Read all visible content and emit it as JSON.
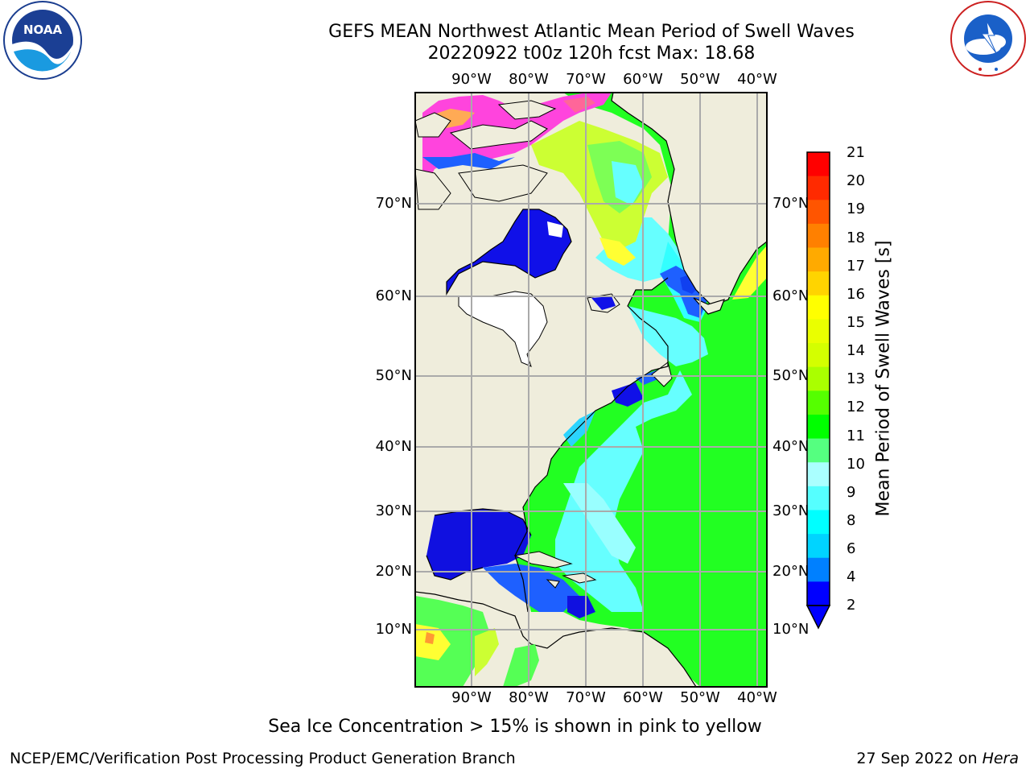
{
  "title_line1": "GEFS MEAN Northwest Atlantic Mean Period of Swell Waves",
  "title_line2": "20220922 t00z 120h fcst   Max: 18.68",
  "logos": {
    "left": "NOAA",
    "right_icon": "national-weather-service-logo"
  },
  "lon_labels": [
    "90°W",
    "80°W",
    "70°W",
    "60°W",
    "50°W",
    "40°W"
  ],
  "lat_labels": [
    "70°N",
    "60°N",
    "50°N",
    "40°N",
    "30°N",
    "20°N",
    "10°N"
  ],
  "colorbar": {
    "title": "Mean Period of Swell Waves [s]",
    "ticks": [
      "21",
      "20",
      "19",
      "18",
      "17",
      "16",
      "15",
      "14",
      "13",
      "12",
      "11",
      "10",
      "9",
      "8",
      "6",
      "4",
      "2"
    ],
    "colors": [
      "#ff0000",
      "#ff2a00",
      "#ff5500",
      "#ff8000",
      "#ffaa00",
      "#ffd400",
      "#ffff00",
      "#eaff00",
      "#d4ff00",
      "#aaff00",
      "#55ff00",
      "#00ff00",
      "#55ff80",
      "#aaffff",
      "#55ffff",
      "#00ffff",
      "#00d4ff",
      "#0080ff",
      "#0000ff"
    ]
  },
  "colors": {
    "land": "#efeddc",
    "ice_pink": "#ff44dd",
    "ocean_green": "#1eff1e",
    "ocean_cyan": "#7dffff",
    "ocean_blue": "#1010f0",
    "grid": "#aaaaaa"
  },
  "note": "Sea Ice Concentration > 15% is shown in pink to yellow",
  "footer_left": "NCEP/EMC/Verification Post Processing Product Generation Branch",
  "footer_right_prefix": "27 Sep 2022 on ",
  "footer_right_host": "Hera"
}
